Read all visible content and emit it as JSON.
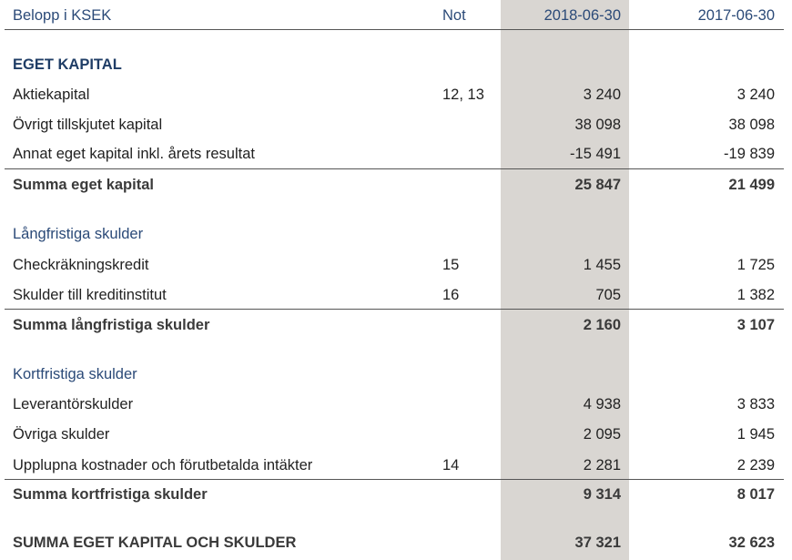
{
  "header": {
    "label": "Belopp i KSEK",
    "note": "Not",
    "col1": "2018-06-30",
    "col2": "2017-06-30"
  },
  "equity": {
    "heading": "EGET KAPITAL",
    "rows": [
      {
        "label": "Aktiekapital",
        "note": "12, 13",
        "v1": "3 240",
        "v2": "3 240"
      },
      {
        "label": "Övrigt tillskjutet kapital",
        "note": "",
        "v1": "38 098",
        "v2": "38 098"
      },
      {
        "label": "Annat eget kapital inkl. årets resultat",
        "note": "",
        "v1": "-15 491",
        "v2": "-19 839"
      }
    ],
    "total": {
      "label": "Summa eget kapital",
      "v1": "25 847",
      "v2": "21 499"
    }
  },
  "longterm": {
    "heading": "Långfristiga skulder",
    "rows": [
      {
        "label": "Checkräkningskredit",
        "note": "15",
        "v1": "1 455",
        "v2": "1 725"
      },
      {
        "label": "Skulder till kreditinstitut",
        "note": "16",
        "v1": "705",
        "v2": "1 382"
      }
    ],
    "total": {
      "label": "Summa långfristiga skulder",
      "v1": "2 160",
      "v2": "3 107"
    }
  },
  "shortterm": {
    "heading": "Kortfristiga skulder",
    "rows": [
      {
        "label": "Leverantörskulder",
        "note": "",
        "v1": "4 938",
        "v2": "3 833"
      },
      {
        "label": "Övriga skulder",
        "note": "",
        "v1": "2 095",
        "v2": "1 945"
      },
      {
        "label": "Upplupna kostnader och förutbetalda intäkter",
        "note": "14",
        "v1": "2 281",
        "v2": "2 239"
      }
    ],
    "total": {
      "label": "Summa kortfristiga skulder",
      "v1": "9 314",
      "v2": "8 017"
    }
  },
  "grand_total": {
    "label": "SUMMA EGET KAPITAL OCH SKULDER",
    "v1": "37 321",
    "v2": "32 623"
  }
}
